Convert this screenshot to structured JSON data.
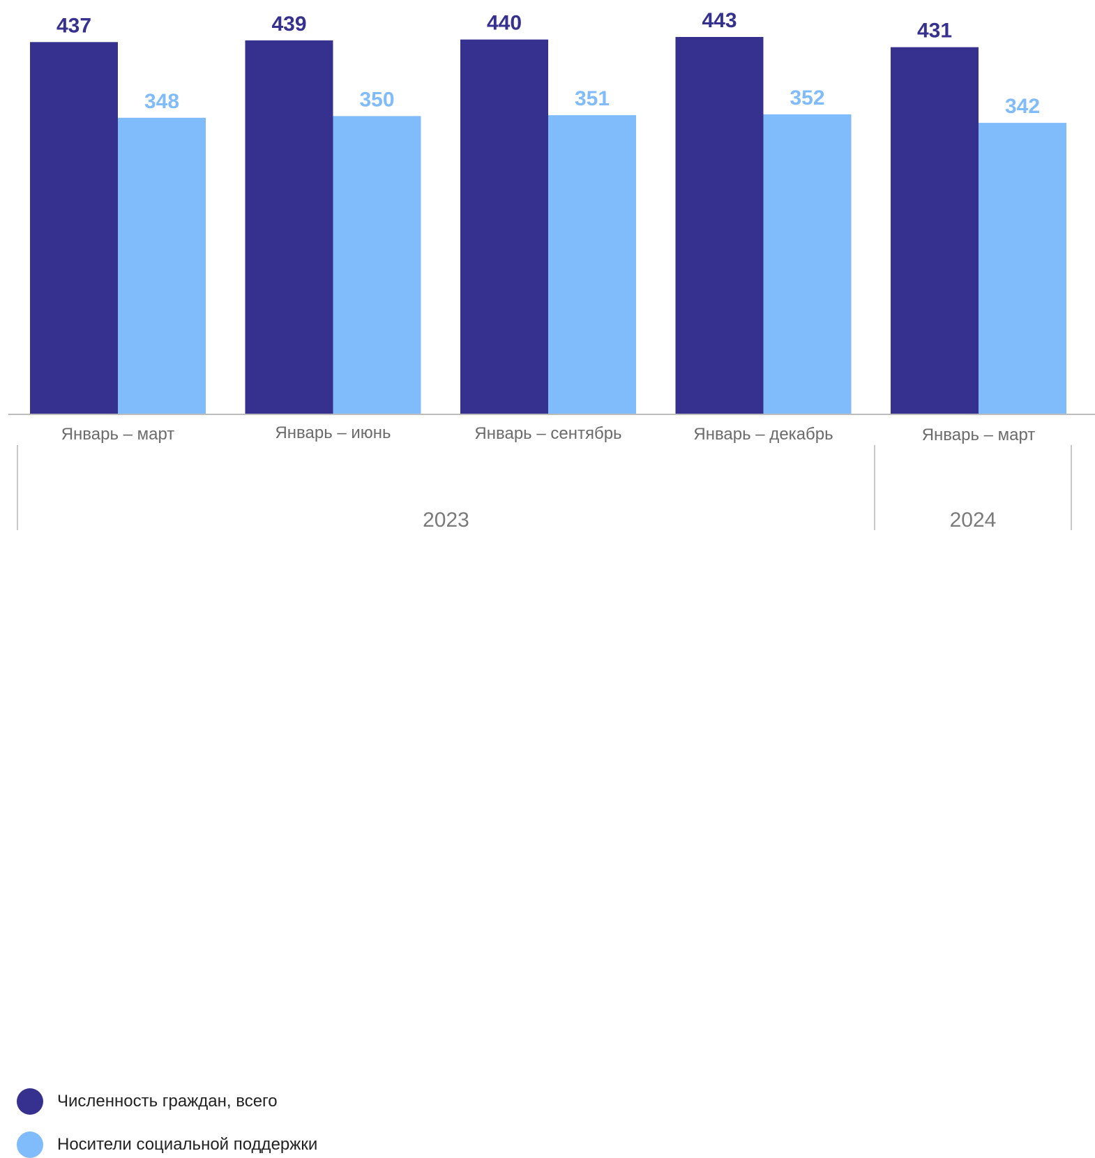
{
  "chart_data": {
    "type": "bar",
    "categories": [
      "Январь – март",
      "Январь – июнь",
      "Январь – сентябрь",
      "Январь – декабрь",
      "Январь – март"
    ],
    "year_groups": [
      {
        "label": "2023",
        "categories": [
          0,
          1,
          2,
          3
        ]
      },
      {
        "label": "2024",
        "categories": [
          4
        ]
      }
    ],
    "series": [
      {
        "name": "Численность граждан, всего",
        "values": [
          437,
          439,
          440,
          443,
          431
        ],
        "color": "#36318f"
      },
      {
        "name": "Носители социальной поддержки",
        "values": [
          348,
          350,
          351,
          352,
          342
        ],
        "color": "#80bbfb"
      }
    ],
    "ylim": [
      0,
      443
    ],
    "grid": false,
    "legend_position": "bottom-left",
    "data_labels": true
  }
}
